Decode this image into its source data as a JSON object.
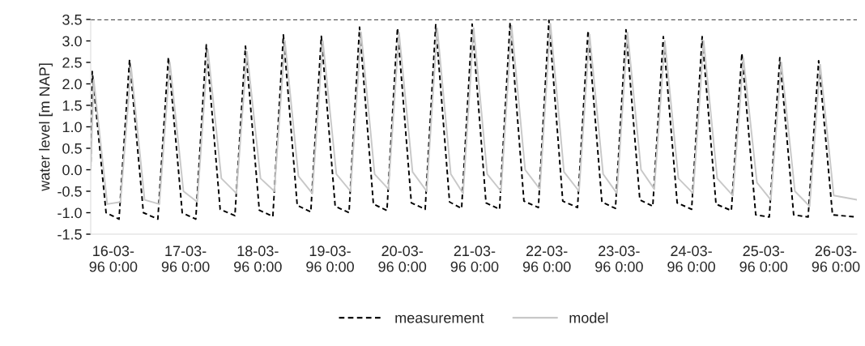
{
  "chart_data": {
    "type": "line",
    "ylabel": "water level [m NAP]",
    "series": [
      {
        "name": "measurement",
        "color": "#000000",
        "line_style": "dashed",
        "x": [
          "1996-03-15T16:30",
          "1996-03-15T17:00",
          "1996-03-15T21:36",
          "1996-03-16T01:54",
          "1996-03-16T05:24",
          "1996-03-16T10:00",
          "1996-03-16T14:48",
          "1996-03-16T18:18",
          "1996-03-16T22:54",
          "1996-03-17T03:24",
          "1996-03-17T06:54",
          "1996-03-17T11:30",
          "1996-03-17T16:24",
          "1996-03-17T19:54",
          "1996-03-18T00:30",
          "1996-03-18T05:00",
          "1996-03-18T08:30",
          "1996-03-18T13:06",
          "1996-03-18T17:36",
          "1996-03-18T21:06",
          "1996-03-19T01:42",
          "1996-03-19T06:18",
          "1996-03-19T09:48",
          "1996-03-19T14:24",
          "1996-03-19T18:54",
          "1996-03-19T22:24",
          "1996-03-20T03:00",
          "1996-03-20T07:36",
          "1996-03-20T11:06",
          "1996-03-20T15:42",
          "1996-03-20T19:42",
          "1996-03-20T23:12",
          "1996-03-21T03:48",
          "1996-03-21T08:18",
          "1996-03-21T11:48",
          "1996-03-21T16:24",
          "1996-03-21T21:12",
          "1996-03-22T00:42",
          "1996-03-22T05:18",
          "1996-03-22T10:12",
          "1996-03-22T13:42",
          "1996-03-22T18:18",
          "1996-03-22T22:48",
          "1996-03-23T02:18",
          "1996-03-23T06:54",
          "1996-03-23T11:12",
          "1996-03-23T14:42",
          "1996-03-23T19:18",
          "1996-03-24T00:06",
          "1996-03-24T03:36",
          "1996-03-24T08:12",
          "1996-03-24T13:18",
          "1996-03-24T16:48",
          "1996-03-24T21:24",
          "1996-03-25T01:54",
          "1996-03-25T05:24",
          "1996-03-25T10:00",
          "1996-03-25T14:48",
          "1996-03-25T18:18",
          "1996-03-25T22:54",
          "1996-03-26T07:00"
        ],
        "values": [
          0.0,
          2.29,
          -1.0,
          -1.15,
          2.56,
          -1.0,
          -1.15,
          2.62,
          -1.0,
          -1.15,
          2.91,
          -0.92,
          -1.07,
          2.88,
          -0.94,
          -1.09,
          3.14,
          -0.83,
          -0.98,
          3.11,
          -0.85,
          -1.0,
          3.32,
          -0.8,
          -0.95,
          3.3,
          -0.77,
          -0.92,
          3.38,
          -0.75,
          -0.9,
          3.39,
          -0.77,
          -0.92,
          3.43,
          -0.73,
          -0.88,
          3.48,
          -0.73,
          -0.88,
          3.24,
          -0.75,
          -0.9,
          3.26,
          -0.7,
          -0.85,
          3.1,
          -0.77,
          -0.92,
          3.1,
          -0.8,
          -0.95,
          2.71,
          -1.05,
          -1.1,
          2.61,
          -1.05,
          -1.1,
          2.54,
          -1.05,
          -1.1
        ]
      },
      {
        "name": "model",
        "color": "#c8c8c8",
        "line_style": "solid",
        "x": [
          "1996-03-15T16:30",
          "1996-03-15T17:30",
          "1996-03-15T22:00",
          "1996-03-16T02:24",
          "1996-03-16T05:54",
          "1996-03-16T10:24",
          "1996-03-16T15:18",
          "1996-03-16T18:48",
          "1996-03-16T23:18",
          "1996-03-17T03:54",
          "1996-03-17T07:24",
          "1996-03-17T11:54",
          "1996-03-17T16:54",
          "1996-03-17T20:24",
          "1996-03-18T00:54",
          "1996-03-18T05:30",
          "1996-03-18T09:00",
          "1996-03-18T13:30",
          "1996-03-18T18:06",
          "1996-03-18T21:36",
          "1996-03-19T02:06",
          "1996-03-19T06:48",
          "1996-03-19T10:18",
          "1996-03-19T14:48",
          "1996-03-19T19:24",
          "1996-03-19T22:54",
          "1996-03-20T03:24",
          "1996-03-20T08:06",
          "1996-03-20T11:36",
          "1996-03-20T16:06",
          "1996-03-20T20:12",
          "1996-03-20T23:42",
          "1996-03-21T04:12",
          "1996-03-21T08:48",
          "1996-03-21T12:18",
          "1996-03-21T16:48",
          "1996-03-21T21:42",
          "1996-03-22T01:12",
          "1996-03-22T05:42",
          "1996-03-22T10:42",
          "1996-03-22T14:12",
          "1996-03-22T18:42",
          "1996-03-22T23:18",
          "1996-03-23T02:48",
          "1996-03-23T07:18",
          "1996-03-23T11:42",
          "1996-03-23T15:12",
          "1996-03-23T19:42",
          "1996-03-24T00:36",
          "1996-03-24T04:06",
          "1996-03-24T08:36",
          "1996-03-24T13:48",
          "1996-03-24T17:18",
          "1996-03-24T21:48",
          "1996-03-25T02:24",
          "1996-03-25T05:54",
          "1996-03-25T10:24",
          "1996-03-25T15:18",
          "1996-03-25T18:48",
          "1996-03-25T23:18",
          "1996-03-26T07:00"
        ],
        "values": [
          0.0,
          2.1,
          -0.8,
          -0.75,
          2.4,
          -0.7,
          -0.8,
          2.5,
          -0.5,
          -0.75,
          2.8,
          -0.2,
          -0.55,
          2.75,
          -0.2,
          -0.5,
          3.0,
          -0.15,
          -0.55,
          3.0,
          -0.1,
          -0.5,
          3.2,
          -0.1,
          -0.45,
          3.2,
          -0.05,
          -0.5,
          3.3,
          -0.1,
          -0.55,
          3.3,
          -0.1,
          -0.5,
          3.35,
          0.0,
          -0.45,
          3.4,
          -0.05,
          -0.5,
          3.15,
          -0.1,
          -0.55,
          3.2,
          0.0,
          -0.45,
          3.0,
          -0.2,
          -0.55,
          3.0,
          -0.2,
          -0.6,
          2.6,
          -0.3,
          -0.7,
          2.5,
          -0.5,
          -0.85,
          2.45,
          -0.6,
          -0.7
        ]
      }
    ],
    "xlim": [
      "1996-03-15T16:30",
      "1996-03-26T07:00"
    ],
    "xticks": [
      {
        "value": "1996-03-16",
        "label": "16-03-\n96 0:00"
      },
      {
        "value": "1996-03-17",
        "label": "17-03-\n96 0:00"
      },
      {
        "value": "1996-03-18",
        "label": "18-03-\n96 0:00"
      },
      {
        "value": "1996-03-19",
        "label": "19-03-\n96 0:00"
      },
      {
        "value": "1996-03-20",
        "label": "20-03-\n96 0:00"
      },
      {
        "value": "1996-03-21",
        "label": "21-03-\n96 0:00"
      },
      {
        "value": "1996-03-22",
        "label": "22-03-\n96 0:00"
      },
      {
        "value": "1996-03-23",
        "label": "23-03-\n96 0:00"
      },
      {
        "value": "1996-03-24",
        "label": "24-03-\n96 0:00"
      },
      {
        "value": "1996-03-25",
        "label": "25-03-\n96 0:00"
      },
      {
        "value": "1996-03-26",
        "label": "26-03-\n96 0:00"
      }
    ],
    "ylim": [
      -1.5,
      3.5
    ],
    "yticks": [
      -1.5,
      {
        "value": -1,
        "label": "-1.0"
      },
      -0.5,
      {
        "value": 0,
        "label": "0.0"
      },
      0.5,
      {
        "value": 1,
        "label": "1.0"
      },
      1.5,
      {
        "value": 2,
        "label": "2.0"
      },
      2.5,
      {
        "value": 3,
        "label": "3.0"
      },
      3.5
    ],
    "ref_lines": [
      {
        "axis": "y",
        "value": 3.5,
        "color": "#000000",
        "line_style": "dashed"
      }
    ],
    "grid": false,
    "legend": "bottom",
    "marker": "none"
  }
}
